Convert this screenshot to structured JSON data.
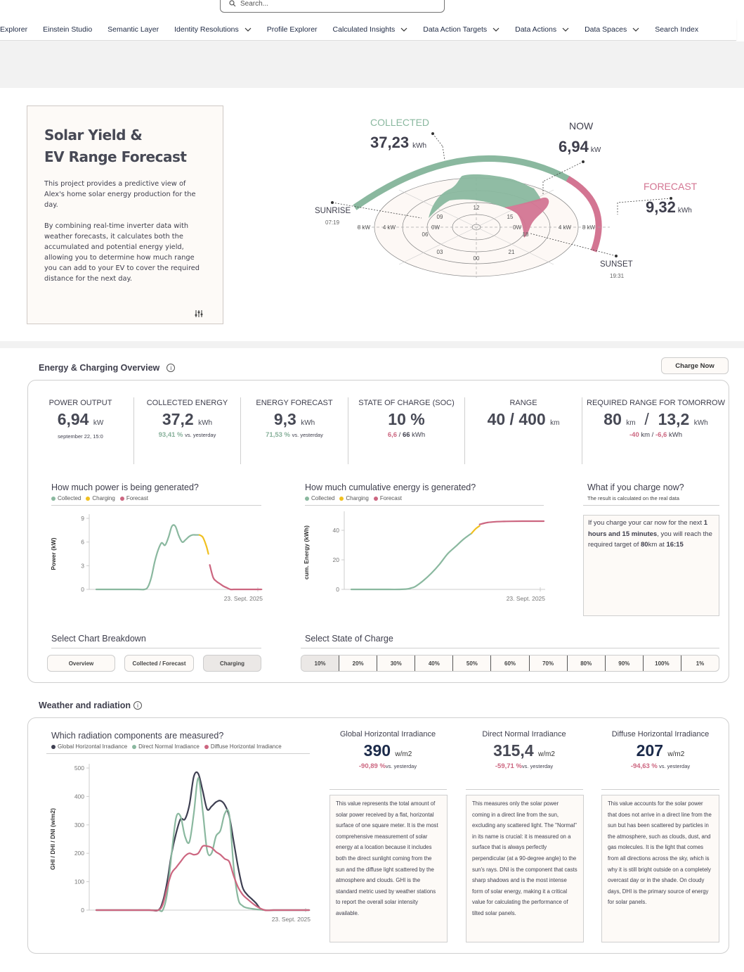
{
  "search": {
    "placeholder": "Search..."
  },
  "nav": [
    {
      "label": "Explorer",
      "chevron": false
    },
    {
      "label": "Einstein Studio",
      "chevron": false
    },
    {
      "label": "Semantic Layer",
      "chevron": false
    },
    {
      "label": "Identity Resolutions",
      "chevron": true
    },
    {
      "label": "Profile Explorer",
      "chevron": false
    },
    {
      "label": "Calculated Insights",
      "chevron": true
    },
    {
      "label": "Data Action Targets",
      "chevron": true
    },
    {
      "label": "Data Actions",
      "chevron": true
    },
    {
      "label": "Data Spaces",
      "chevron": true
    },
    {
      "label": "Search Index",
      "chevron": false
    }
  ],
  "intro": {
    "title_line1": "Solar Yield &",
    "title_line2": "EV Range Forecast",
    "para1": "This project provides a predictive view of Alex's home solar energy production for the day.",
    "para2": "By combining real-time inverter data with weather forecasts, it calculates both the accumulated and potential energy yield, allowing you to determine how much range you can add to your EV to cover the required distance for the next day."
  },
  "radial": {
    "collected_label": "COLLECTED",
    "collected_value": "37,23",
    "collected_unit": "kWh",
    "now_label": "NOW",
    "now_value": "6,94",
    "now_unit": "kW",
    "forecast_label": "FORECAST",
    "forecast_value": "9,32",
    "forecast_unit": "kWh",
    "sunrise_label": "SUNRISE",
    "sunrise_time": "07:19",
    "sunset_label": "SUNSET",
    "sunset_time": "19:31",
    "hour_labels": [
      "12",
      "15",
      "18",
      "21",
      "00",
      "03",
      "06",
      "09"
    ],
    "ring_labels_left": [
      "8 kW",
      "4 kW",
      "0W"
    ],
    "ring_labels_right": [
      "0W",
      "4 kW",
      "8 kW"
    ],
    "colors": {
      "collected": "#8ab89f",
      "forecast": "#d37592"
    }
  },
  "overview": {
    "title": "Energy & Charging Overview",
    "charge_button": "Charge Now",
    "kpis": [
      {
        "label": "POWER OUTPUT",
        "value": "6,94",
        "unit": "kW",
        "sub": "september 22, 15:0"
      },
      {
        "label": "COLLECTED ENERGY",
        "value": "37,2",
        "unit": "kWh",
        "sub_pct": "93,41 %",
        "sub_text": "vs. yesterday"
      },
      {
        "label": "ENERGY FORECAST",
        "value": "9,3",
        "unit": "kWh",
        "sub_pct": "71,53 %",
        "sub_text": "vs. yesterday"
      },
      {
        "label": "STATE OF CHARGE (SOC)",
        "value": "10 %",
        "sub_a": "6,6",
        "sub_sep": " / ",
        "sub_b": "66",
        "sub_unit": " kWh"
      },
      {
        "label": "RANGE",
        "value": "40 / 400",
        "unit": "km"
      },
      {
        "label": "REQUIRED RANGE FOR TOMORROW",
        "value_a": "80",
        "unit_a": "km",
        "sep": "/",
        "value_b": "13,2",
        "unit_b": "kWh",
        "sub_a": "-40",
        "sub_a_unit": " km",
        "sub_sep": " / ",
        "sub_b": "-6,6",
        "sub_b_unit": " kWh"
      }
    ]
  },
  "legend_energy": [
    {
      "label": "Collected",
      "color": "#8ab89f"
    },
    {
      "label": "Charging",
      "color": "#f0c020"
    },
    {
      "label": "Forecast",
      "color": "#cc6680"
    }
  ],
  "chart_data": [
    {
      "type": "line",
      "title": "How much power is being generated?",
      "xlabel": "23. Sept. 2025",
      "ylabel": "Power (kW)",
      "ylim": [
        0,
        9
      ],
      "yticks": [
        0,
        3,
        6,
        9
      ],
      "x_hours": [
        0,
        1,
        2,
        3,
        4,
        5,
        6,
        7,
        7.5,
        8,
        8.5,
        9,
        9.5,
        10,
        10.5,
        11,
        11.5,
        12,
        12.5,
        13,
        13.5,
        14,
        14.5,
        15,
        15.5,
        16,
        16.5,
        17,
        17.5,
        18,
        18.5,
        19,
        20,
        21,
        22,
        23,
        24
      ],
      "series": [
        {
          "name": "Collected",
          "color": "#8ab89f",
          "x": [
            0,
            2,
            4,
            6,
            7,
            7.5,
            8,
            8.5,
            9,
            9.5,
            10,
            10.5,
            11,
            11.5,
            12,
            12.5,
            13,
            13.5,
            14,
            14.5,
            15
          ],
          "y": [
            0,
            0,
            0,
            0,
            0,
            0.3,
            1.5,
            3.5,
            5.0,
            5.9,
            5.6,
            6.6,
            8.0,
            8.0,
            6.8,
            6.0,
            6.3,
            6.7,
            6.9,
            6.9,
            6.9
          ]
        },
        {
          "name": "Charging",
          "color": "#f0c020",
          "x": [
            15,
            15.5,
            16,
            16.3
          ],
          "y": [
            6.9,
            6.6,
            5.5,
            4.5
          ]
        },
        {
          "name": "Forecast",
          "color": "#cc6680",
          "x": [
            16.5,
            17,
            17.5,
            18,
            18.5,
            19,
            19.5,
            20,
            21,
            22,
            23,
            24
          ],
          "y": [
            3.1,
            1.5,
            1.0,
            0.7,
            0.4,
            0.2,
            0.0,
            0,
            0,
            0,
            0,
            0
          ]
        }
      ]
    },
    {
      "type": "line",
      "title": "How much cumulative energy is generated?",
      "xlabel": "23. Sept. 2025",
      "ylabel": "cum. Energy (kWh)",
      "ylim": [
        0,
        50
      ],
      "yticks": [
        0,
        20,
        40
      ],
      "series": [
        {
          "name": "Collected",
          "color": "#8ab89f",
          "x": [
            0,
            2,
            4,
            6,
            7,
            7.5,
            8,
            9,
            10,
            11,
            12,
            13,
            14,
            15
          ],
          "y": [
            0,
            0,
            0,
            0,
            0.3,
            1,
            2,
            6,
            11,
            17,
            24,
            29,
            34,
            38
          ]
        },
        {
          "name": "Charging",
          "color": "#f0c020",
          "x": [
            15,
            15.5,
            16
          ],
          "y": [
            38,
            41,
            43
          ]
        },
        {
          "name": "Forecast",
          "color": "#cc6680",
          "x": [
            16,
            17,
            18,
            19,
            20,
            22,
            24
          ],
          "y": [
            44,
            45.3,
            45.8,
            46,
            46.1,
            46.2,
            46.2
          ]
        }
      ]
    },
    {
      "type": "line",
      "title": "Which radiation components are measured?",
      "xlabel": "23. Sept. 2025",
      "ylabel": "GHI / DHI / DNI (w/m2)",
      "ylim": [
        0,
        500
      ],
      "yticks": [
        0,
        100,
        200,
        300,
        400,
        500
      ],
      "series": [
        {
          "name": "Global Horizontal Irradiance",
          "color": "#3e3f52",
          "x": [
            0,
            2,
            4,
            6,
            7,
            7.5,
            8,
            8.5,
            9,
            9.5,
            10,
            10.5,
            11,
            11.5,
            12,
            12.5,
            13,
            13.5,
            14,
            14.5,
            15,
            15.5,
            16,
            16.5,
            17,
            17.5,
            18,
            18.5,
            19,
            20,
            22,
            24
          ],
          "y": [
            0,
            0,
            0,
            0,
            0,
            30,
            100,
            200,
            270,
            320,
            320,
            370,
            470,
            480,
            420,
            355,
            365,
            380,
            385,
            370,
            330,
            240,
            150,
            80,
            55,
            40,
            25,
            5,
            0,
            0,
            0,
            0
          ]
        },
        {
          "name": "Direct Normal Irradiance",
          "color": "#8ab89f",
          "x": [
            0,
            2,
            4,
            6,
            7,
            7.5,
            8,
            8.5,
            9,
            9.5,
            10,
            10.5,
            11,
            11.5,
            12,
            12.5,
            13,
            13.5,
            14,
            14.5,
            15,
            15.5,
            16,
            16.5,
            17,
            18,
            19,
            20,
            22,
            24
          ],
          "y": [
            0,
            0,
            0,
            0,
            0,
            0,
            60,
            200,
            325,
            330,
            260,
            240,
            340,
            465,
            350,
            210,
            200,
            260,
            280,
            340,
            335,
            150,
            40,
            15,
            8,
            3,
            0,
            0,
            0,
            0
          ]
        },
        {
          "name": "Diffuse Horizontal Irradiance",
          "color": "#cc6680",
          "x": [
            0,
            2,
            4,
            6,
            7,
            7.5,
            8,
            8.5,
            9,
            9.5,
            10,
            10.5,
            11,
            11.5,
            12,
            12.5,
            13,
            13.5,
            14,
            14.5,
            15,
            15.5,
            16,
            16.5,
            17,
            18,
            19,
            20,
            22,
            24
          ],
          "y": [
            0,
            0,
            0,
            0,
            0,
            20,
            80,
            130,
            150,
            170,
            190,
            200,
            195,
            200,
            225,
            225,
            220,
            205,
            195,
            180,
            170,
            120,
            80,
            55,
            40,
            15,
            0,
            0,
            0,
            0
          ]
        }
      ]
    }
  ],
  "whatif": {
    "title": "What if you charge now?",
    "subtitle": "The result is calculated on the real data",
    "text_1": "If you charge your car now for the next ",
    "bold_duration": "1 hours and 15 minutes",
    "text_2": ", you will reach the required target of ",
    "bold_range": "80",
    "text_3": "km at ",
    "bold_time": "16:15"
  },
  "breakdown": {
    "title": "Select Chart Breakdown",
    "buttons": [
      "Overview",
      "Collected / Forecast",
      "Charging"
    ],
    "active": "Charging"
  },
  "soc_select": {
    "title": "Select State of Charge",
    "options": [
      "10%",
      "20%",
      "30%",
      "40%",
      "50%",
      "60%",
      "70%",
      "80%",
      "90%",
      "100%",
      "1%"
    ],
    "active": "10%"
  },
  "weather": {
    "title": "Weather and radiation",
    "legend": [
      {
        "label": "Global Horizontal Irradiance",
        "color": "#3e3f52"
      },
      {
        "label": "Direct Normal Irradiance",
        "color": "#8ab89f"
      },
      {
        "label": "Diffuse Horizontal Irradiance",
        "color": "#cc6680"
      }
    ],
    "cards": [
      {
        "title": "Global Horizontal Irradiance",
        "value": "390",
        "unit": "w/m2",
        "pct": "-90,89 %",
        "vs": "vs. yesterday",
        "desc": "This value represents the total amount of solar power received by a flat, horizontal surface of one square meter. It is the most comprehensive measurement of solar energy at a location because it includes both the direct sunlight coming from the sun and the diffuse light scattered by the atmosphere and clouds. GHI is the standard metric used by weather stations to report the overall solar intensity available."
      },
      {
        "title": "Direct Normal Irradiance",
        "value": "315,4",
        "unit": "w/m2",
        "pct": "-59,71 %",
        "vs": "vs. yesterday",
        "desc": "This measures only the solar power coming in a direct line from the sun, excluding any scattered light. The \"Normal\" in its name is crucial: it is measured on a surface that is always perfectly perpendicular (at a 90-degree angle) to the sun's rays. DNI is the component that casts sharp shadows and is the most intense form of solar energy, making it a critical value for calculating the performance of tilted solar panels."
      },
      {
        "title": "Diffuse Horizontal Irradiance",
        "value": "207",
        "unit": "w/m2",
        "pct": "-94,63 %",
        "vs": " vs. yesterday",
        "desc": "This value accounts for the solar power that does not arrive in a direct line from the sun but has been scattered by particles in the atmosphere, such as clouds, dust, and gas molecules. It is the light that comes from all directions across the sky, which is why it is still bright outside on a completely overcast day or in the shade. On cloudy days, DHI is the primary source of energy for solar panels."
      }
    ]
  }
}
